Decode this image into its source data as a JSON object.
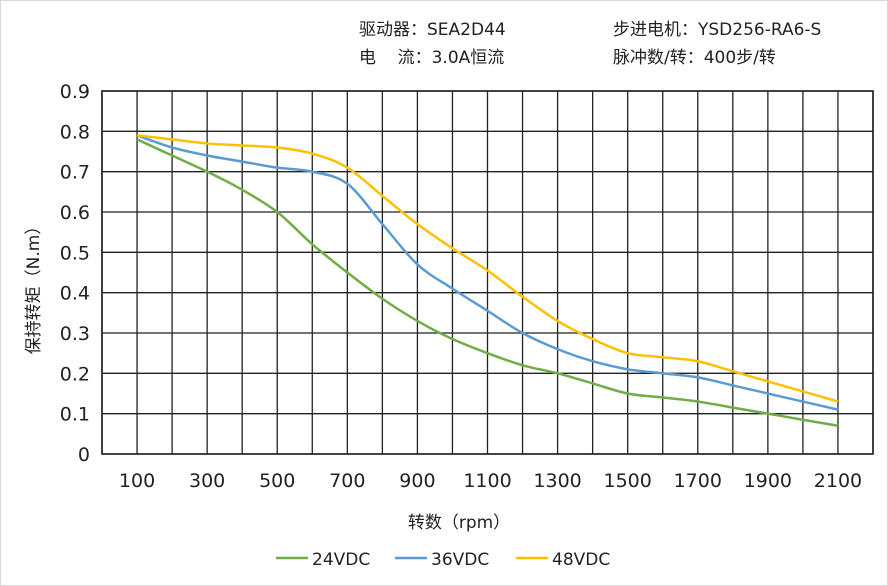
{
  "header": {
    "driver": "驱动器：SEA2D44",
    "current": "电    流：3.0A恒流",
    "motor": "步进电机：YSD256-RA6-S",
    "pulses": "脉冲数/转：400步/转"
  },
  "chart_data": {
    "type": "line",
    "title": "",
    "xlabel": "转数（rpm）",
    "ylabel": "保持转矩（N.m）",
    "xlim": [
      0,
      2200
    ],
    "ylim": [
      0,
      0.9
    ],
    "grid": true,
    "legend_position": "bottom",
    "xticks": [
      100,
      300,
      500,
      700,
      900,
      1100,
      1300,
      1500,
      1700,
      1900,
      2100
    ],
    "yticks": [
      0,
      0.1,
      0.2,
      0.3,
      0.4,
      0.5,
      0.6,
      0.7,
      0.8,
      0.9
    ],
    "x": [
      100,
      200,
      300,
      400,
      500,
      600,
      700,
      800,
      900,
      1000,
      1100,
      1200,
      1300,
      1400,
      1500,
      1600,
      1700,
      1800,
      1900,
      2000,
      2100
    ],
    "series": [
      {
        "name": "24VDC",
        "color": "#70ad47",
        "values": [
          0.78,
          0.74,
          0.7,
          0.655,
          0.6,
          0.52,
          0.45,
          0.385,
          0.33,
          0.285,
          0.25,
          0.22,
          0.2,
          0.175,
          0.15,
          0.14,
          0.13,
          0.115,
          0.1,
          0.085,
          0.07
        ]
      },
      {
        "name": "36VDC",
        "color": "#5b9bd5",
        "values": [
          0.79,
          0.76,
          0.74,
          0.725,
          0.71,
          0.7,
          0.67,
          0.57,
          0.47,
          0.41,
          0.355,
          0.3,
          0.26,
          0.23,
          0.21,
          0.2,
          0.19,
          0.17,
          0.15,
          0.13,
          0.11
        ]
      },
      {
        "name": "48VDC",
        "color": "#ffc000",
        "values": [
          0.79,
          0.78,
          0.77,
          0.765,
          0.76,
          0.745,
          0.71,
          0.64,
          0.57,
          0.51,
          0.455,
          0.39,
          0.33,
          0.285,
          0.25,
          0.24,
          0.23,
          0.205,
          0.18,
          0.155,
          0.13
        ]
      }
    ]
  }
}
